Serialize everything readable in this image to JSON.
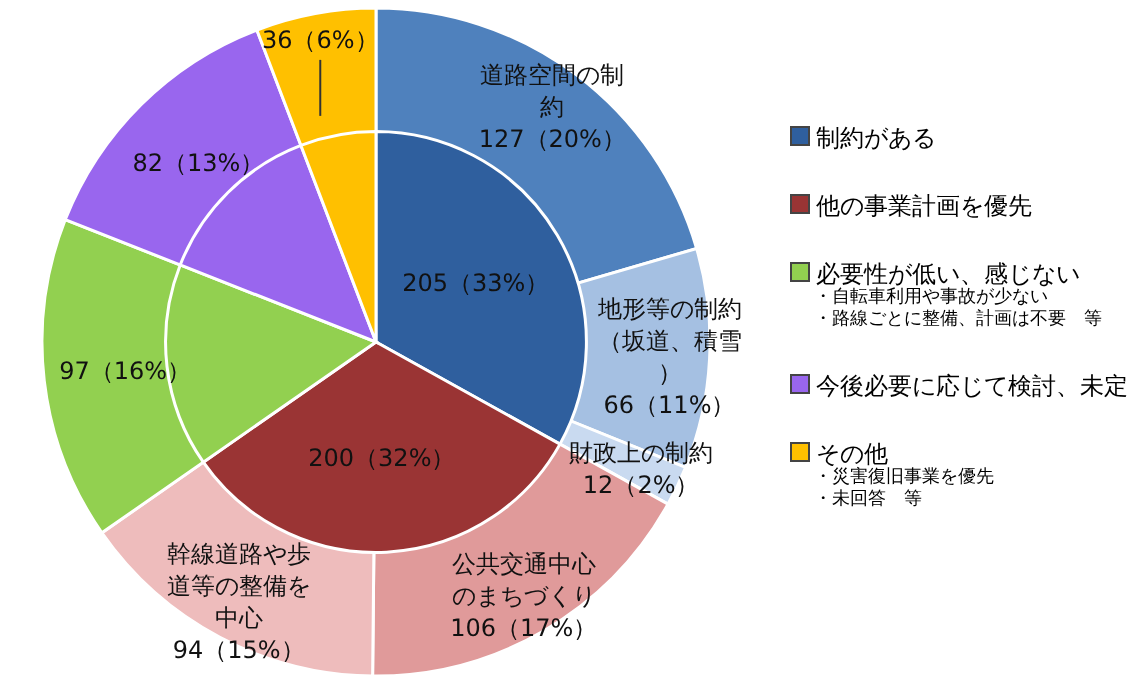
{
  "chart_data": [
    {
      "type": "pie",
      "categories": [
        "道路空間の制約",
        "地形等の制約（坂道、積雪）",
        "財政上の制約",
        "公共交通中心のまちづくり",
        "幹線道路や歩道等の整備を中心",
        null,
        null,
        null
      ],
      "values": [
        127,
        66,
        12,
        106,
        94,
        97,
        82,
        36
      ],
      "colors": [
        "#4f81bd",
        "#a5c0e2",
        "#c9daf0",
        "#e09a9a",
        "#eebcbc",
        "#92d050",
        "#9966ee",
        "#ffc000"
      ],
      "value_labels": [
        "127（20%）",
        "66（11%）",
        "12（2%）",
        "106（17%）",
        "94（15%）",
        null,
        null,
        null
      ]
    },
    {
      "type": "pie",
      "categories": [
        "制約がある",
        "他の事業計画を優先",
        "必要性が低い、感じない",
        "今後必要に応じて検討、未定",
        "その他"
      ],
      "values": [
        205,
        200,
        97,
        82,
        36
      ],
      "colors": [
        "#2f5f9e",
        "#9a3434",
        "#92d050",
        "#9966ee",
        "#ffc000"
      ],
      "value_labels": [
        "205（33%）",
        "200（32%）",
        "97（16%）",
        "82（13%）",
        "36（6%）"
      ],
      "legend": "right",
      "annotations": [
        "・自転車利用や事故が少ない",
        "・路線ごとに整備、計画は不要　等",
        "・災害復旧事業を優先",
        "・未回答　等"
      ]
    }
  ]
}
